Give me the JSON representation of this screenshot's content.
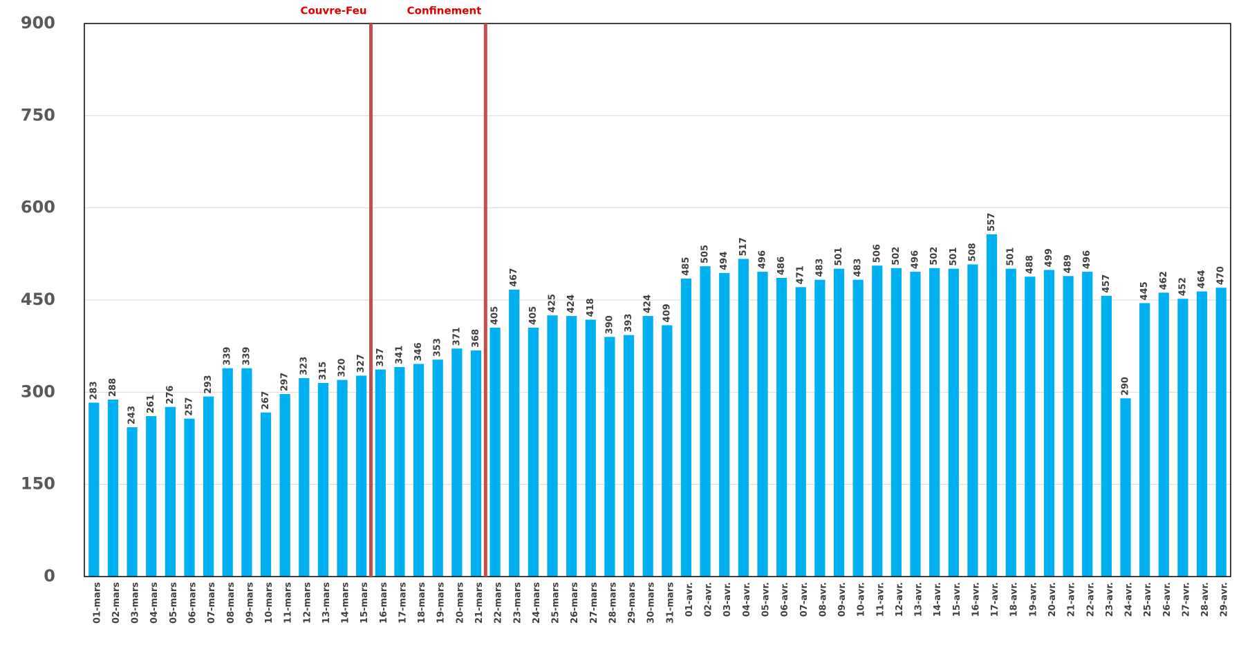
{
  "chart_data": {
    "type": "bar",
    "categories": [
      "01-mars",
      "02-mars",
      "03-mars",
      "04-mars",
      "05-mars",
      "06-mars",
      "07-mars",
      "08-mars",
      "09-mars",
      "10-mars",
      "11-mars",
      "12-mars",
      "13-mars",
      "14-mars",
      "15-mars",
      "16-mars",
      "17-mars",
      "18-mars",
      "19-mars",
      "20-mars",
      "21-mars",
      "22-mars",
      "23-mars",
      "24-mars",
      "25-mars",
      "26-mars",
      "27-mars",
      "28-mars",
      "29-mars",
      "30-mars",
      "31-mars",
      "01-avr.",
      "02-avr.",
      "03-avr.",
      "04-avr.",
      "05-avr.",
      "06-avr.",
      "07-avr.",
      "08-avr.",
      "09-avr.",
      "10-avr.",
      "11-avr.",
      "12-avr.",
      "13-avr.",
      "14-avr.",
      "15-avr.",
      "16-avr.",
      "17-avr.",
      "18-avr.",
      "19-avr.",
      "20-avr.",
      "21-avr.",
      "22-avr.",
      "23-avr.",
      "24-avr.",
      "25-avr.",
      "26-avr.",
      "27-avr.",
      "28-avr.",
      "29-avr."
    ],
    "values": [
      283,
      288,
      243,
      261,
      276,
      257,
      293,
      339,
      339,
      267,
      297,
      323,
      315,
      320,
      327,
      337,
      341,
      346,
      353,
      371,
      368,
      405,
      467,
      405,
      425,
      424,
      418,
      390,
      393,
      424,
      409,
      485,
      505,
      494,
      517,
      496,
      486,
      471,
      483,
      501,
      483,
      506,
      502,
      496,
      502,
      501,
      508,
      557,
      501,
      488,
      499,
      489,
      496,
      457,
      290,
      445,
      462,
      452,
      464,
      470
    ],
    "color": "#00b0f0",
    "ylim": [
      0,
      900
    ],
    "yticks": [
      0,
      150,
      300,
      450,
      600,
      750,
      900
    ],
    "grid": true,
    "annotations": [
      {
        "label": "Couvre-Feu",
        "before": "16-mars",
        "color": "#c0504d"
      },
      {
        "label": "Confinement",
        "before": "22-mars",
        "color": "#c0504d"
      }
    ]
  }
}
